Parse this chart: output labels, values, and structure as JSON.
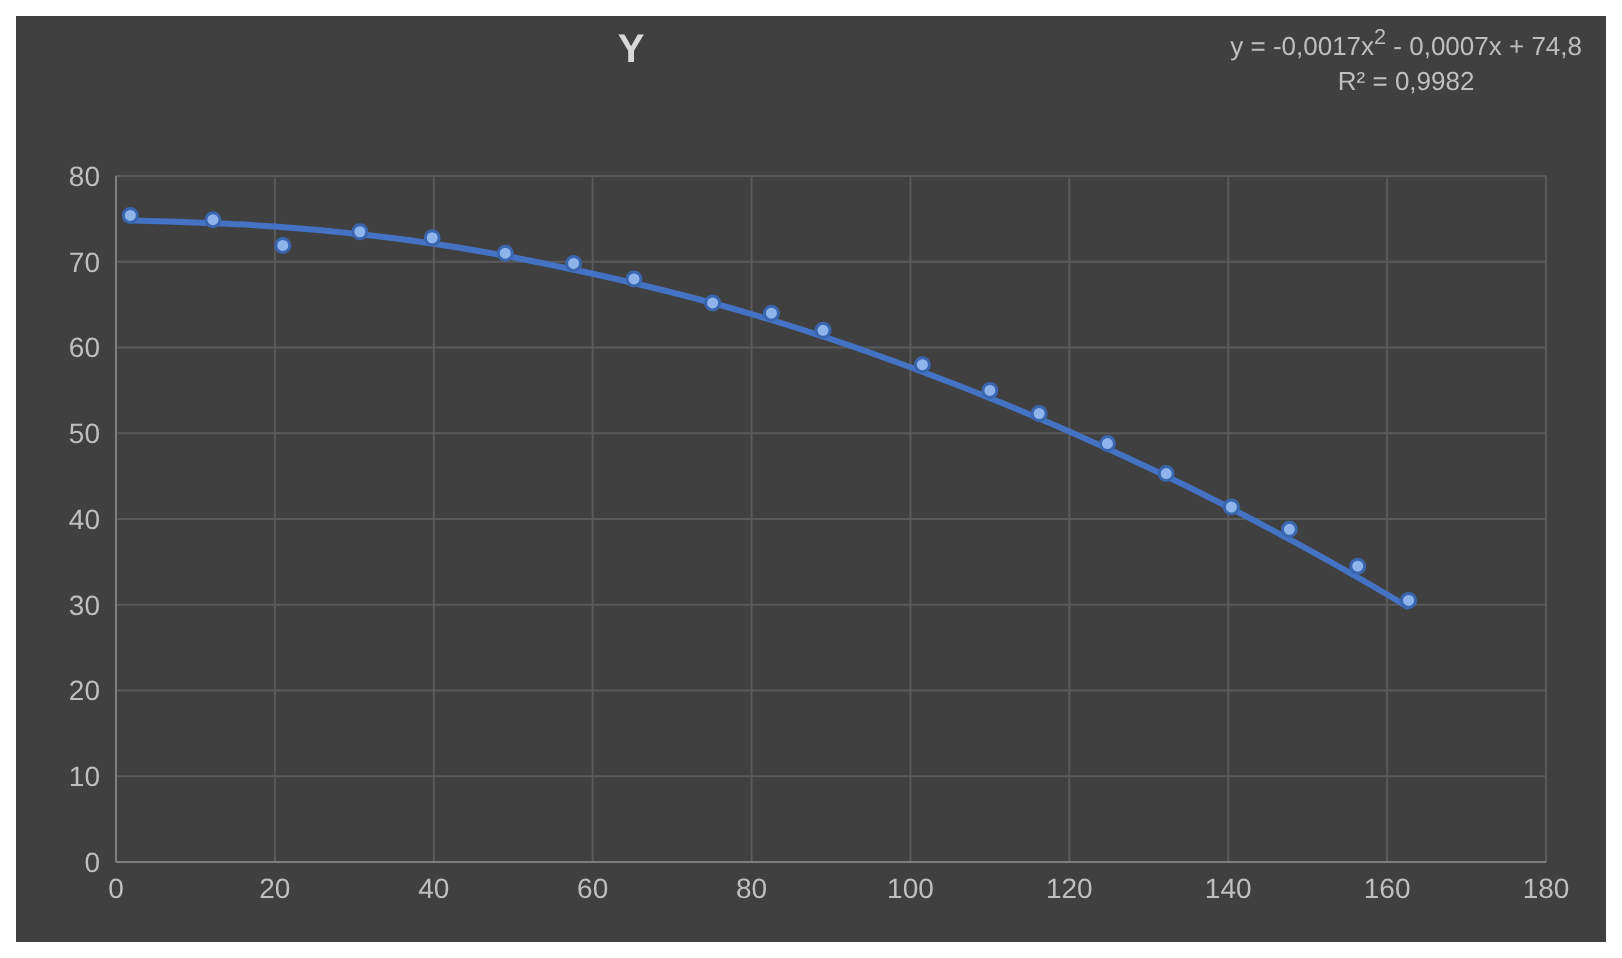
{
  "chart_data": {
    "type": "scatter",
    "title": "Y",
    "series": [
      {
        "color": "#8fb4ec",
        "marker": "circle",
        "x": [
          1.8,
          12.2,
          21,
          30.7,
          39.8,
          49,
          57.6,
          65.2,
          75.1,
          82.5,
          89,
          101.5,
          110,
          116.2,
          124.8,
          132.2,
          140.4,
          147.7,
          156.3,
          162.7
        ],
        "values": [
          75.4,
          74.9,
          71.9,
          73.5,
          72.8,
          71,
          69.8,
          68,
          65.2,
          64,
          62,
          58,
          55,
          52.3,
          48.8,
          45.3,
          41.4,
          38.8,
          34.5,
          30.5
        ]
      },
      {
        "type": "line",
        "color": "#4472c4",
        "x": [
          1.8,
          20,
          40,
          60,
          80,
          100,
          120,
          140,
          160,
          162.7
        ],
        "values": [
          74.8,
          74.1,
          72.1,
          68.6,
          63.9,
          57.7,
          50.2,
          41.4,
          31.2,
          29.7
        ]
      }
    ],
    "xlim": [
      0,
      180
    ],
    "xticks": [
      0,
      20,
      40,
      60,
      80,
      100,
      120,
      140,
      160,
      180
    ],
    "ylim": [
      0,
      80
    ],
    "yticks": [
      0,
      10,
      20,
      30,
      40,
      50,
      60,
      70,
      80
    ],
    "grid": true,
    "legend": false,
    "line_style": "solid",
    "annotations": [
      "y = -0,0017x$^{2}$ - 0,0007x + 74,8",
      "R² = 0,9982"
    ]
  }
}
